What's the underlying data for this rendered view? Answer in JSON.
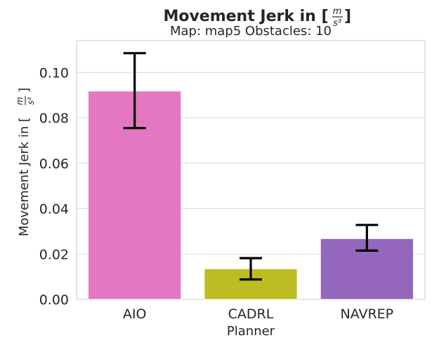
{
  "chart_data": {
    "type": "bar",
    "title_prefix": "Movement Jerk in [",
    "title_suffix": "]",
    "unit_numerator": "m",
    "unit_denominator": "s³",
    "subtitle": "Map: map5 Obstacles: 10",
    "xlabel": "Planner",
    "ylabel_prefix": "Movement Jerk in [",
    "ylabel_suffix": "]",
    "categories": [
      "AIO",
      "CADRL",
      "NAVREP"
    ],
    "values": [
      0.0918,
      0.0135,
      0.0268
    ],
    "error_low": [
      0.0755,
      0.0088,
      0.0215
    ],
    "error_high": [
      0.1085,
      0.0182,
      0.0328
    ],
    "colors": [
      "#e377c2",
      "#bcbd22",
      "#9467bd"
    ],
    "ylim": [
      0,
      0.114
    ],
    "yticks": [
      0,
      0.02,
      0.04,
      0.06,
      0.08,
      0.1
    ],
    "ytick_labels": [
      "0.00",
      "0.02",
      "0.04",
      "0.06",
      "0.08",
      "0.10"
    ],
    "grid": true
  }
}
